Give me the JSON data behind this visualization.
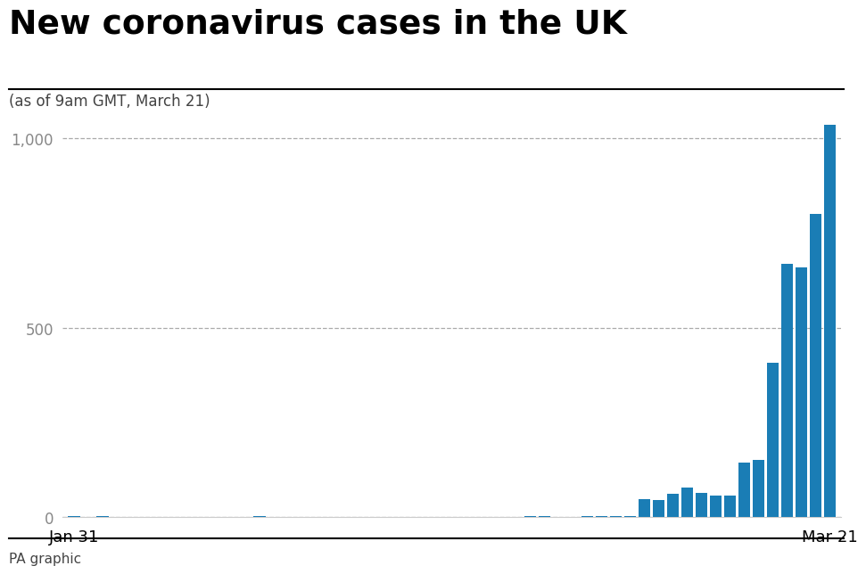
{
  "title": "New coronavirus cases in the UK",
  "subtitle": "(as of 9am GMT, March 21)",
  "footer": "PA graphic",
  "bar_color": "#1a7db5",
  "background_color": "#ffffff",
  "ylim": [
    0,
    1100
  ],
  "yticks": [
    0,
    500,
    1000
  ],
  "ytick_labels": [
    "0",
    "500",
    "1,000"
  ],
  "grid_color": "#aaaaaa",
  "values": [
    2,
    1,
    2,
    0,
    0,
    0,
    0,
    0,
    0,
    0,
    0,
    0,
    0,
    3,
    0,
    0,
    0,
    0,
    0,
    0,
    0,
    0,
    0,
    0,
    0,
    0,
    0,
    0,
    0,
    0,
    0,
    0,
    2,
    2,
    0,
    0,
    3,
    3,
    2,
    3,
    48,
    46,
    62,
    77,
    64,
    56,
    56,
    143,
    152,
    407,
    670,
    660,
    800,
    1035
  ],
  "xtick_labels": [
    "Jan 31",
    "Mar 21"
  ]
}
